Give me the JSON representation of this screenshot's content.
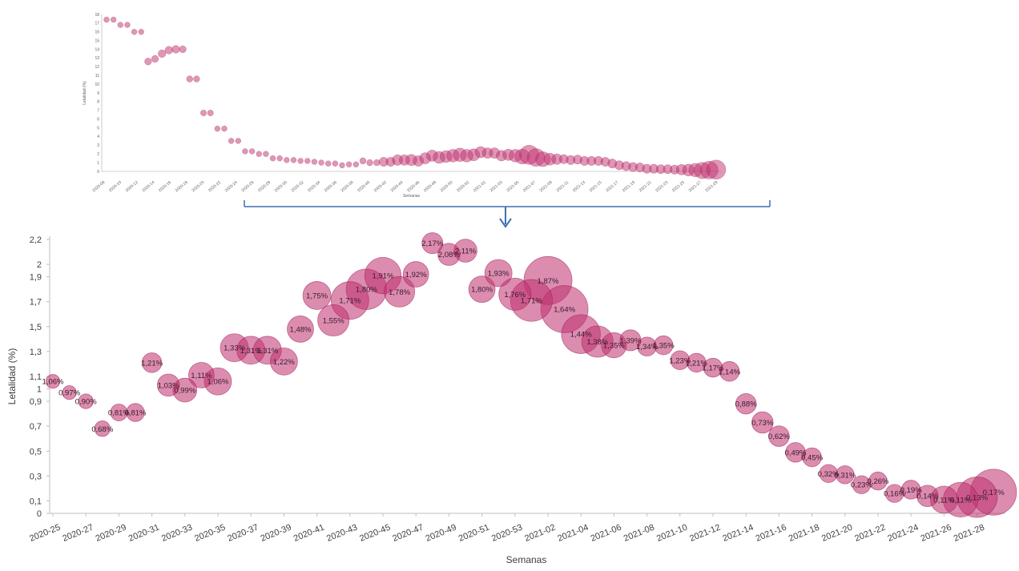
{
  "chart_data": [
    {
      "type": "scatter",
      "subtype": "bubble",
      "title": "",
      "xlabel": "Semanas",
      "ylabel": "Letalidad (%)",
      "ylim": [
        0,
        18
      ],
      "yticks": [
        "0",
        "1",
        "2",
        "3",
        "4",
        "5",
        "6",
        "7",
        "8",
        "9",
        "10",
        "11",
        "12",
        "13",
        "14",
        "15",
        "16",
        "17",
        "18"
      ],
      "x_ticks": [
        "2020-08",
        "2020-10",
        "2020-12",
        "2020-14",
        "2020-16",
        "2020-18",
        "2020-20",
        "2020-22",
        "2020-24",
        "2020-26",
        "2020-28",
        "2020-30",
        "2020-32",
        "2020-34",
        "2020-36",
        "2020-38",
        "2020-40",
        "2020-42",
        "2020-44",
        "2020-46",
        "2020-48",
        "2020-50",
        "2020-52",
        "2021-01",
        "2021-03",
        "2021-05",
        "2021-07",
        "2021-09",
        "2021-11",
        "2021-13",
        "2021-15",
        "2021-17",
        "2021-19",
        "2021-21",
        "2021-23",
        "2021-25",
        "2021-27",
        "2021-29"
      ],
      "grid": false,
      "points": [
        {
          "x": 0,
          "y": 17.4,
          "s": 0.05
        },
        {
          "x": 1,
          "y": 17.4,
          "s": 0.05
        },
        {
          "x": 2,
          "y": 16.8,
          "s": 0.05
        },
        {
          "x": 3,
          "y": 16.8,
          "s": 0.05
        },
        {
          "x": 4,
          "y": 16.0,
          "s": 0.05
        },
        {
          "x": 5,
          "y": 16.0,
          "s": 0.05
        },
        {
          "x": 6,
          "y": 12.6,
          "s": 0.15
        },
        {
          "x": 7,
          "y": 12.9,
          "s": 0.15
        },
        {
          "x": 8,
          "y": 13.5,
          "s": 0.2
        },
        {
          "x": 9,
          "y": 13.9,
          "s": 0.2
        },
        {
          "x": 10,
          "y": 14.0,
          "s": 0.2
        },
        {
          "x": 11,
          "y": 14.0,
          "s": 0.15
        },
        {
          "x": 12,
          "y": 10.6,
          "s": 0.1
        },
        {
          "x": 13,
          "y": 10.6,
          "s": 0.1
        },
        {
          "x": 14,
          "y": 6.7,
          "s": 0.08
        },
        {
          "x": 15,
          "y": 6.7,
          "s": 0.08
        },
        {
          "x": 16,
          "y": 4.9,
          "s": 0.05
        },
        {
          "x": 17,
          "y": 4.9,
          "s": 0.05
        },
        {
          "x": 18,
          "y": 3.5,
          "s": 0.05
        },
        {
          "x": 19,
          "y": 3.5,
          "s": 0.05
        },
        {
          "x": 20,
          "y": 2.3,
          "s": 0.05
        },
        {
          "x": 21,
          "y": 2.3,
          "s": 0.05
        },
        {
          "x": 22,
          "y": 2.0,
          "s": 0.05
        },
        {
          "x": 23,
          "y": 2.0,
          "s": 0.05
        },
        {
          "x": 24,
          "y": 1.5,
          "s": 0.05
        },
        {
          "x": 25,
          "y": 1.5,
          "s": 0.05
        },
        {
          "x": 26,
          "y": 1.3,
          "s": 0.05
        },
        {
          "x": 27,
          "y": 1.3,
          "s": 0.05
        },
        {
          "x": 28,
          "y": 1.2,
          "s": 0.05
        },
        {
          "x": 29,
          "y": 1.2,
          "s": 0.05
        },
        {
          "x": 30,
          "y": 1.1,
          "s": 0.05
        },
        {
          "x": 31,
          "y": 1.0,
          "s": 0.05
        },
        {
          "x": 32,
          "y": 0.9,
          "s": 0.05
        },
        {
          "x": 33,
          "y": 0.9,
          "s": 0.05
        },
        {
          "x": 34,
          "y": 0.7,
          "s": 0.05
        },
        {
          "x": 35,
          "y": 0.8,
          "s": 0.05
        },
        {
          "x": 36,
          "y": 0.8,
          "s": 0.05
        },
        {
          "x": 37,
          "y": 1.2,
          "s": 0.1
        },
        {
          "x": 38,
          "y": 1.0,
          "s": 0.1
        },
        {
          "x": 39,
          "y": 1.0,
          "s": 0.1
        },
        {
          "x": 40,
          "y": 1.1,
          "s": 0.3
        },
        {
          "x": 41,
          "y": 1.1,
          "s": 0.3
        },
        {
          "x": 42,
          "y": 1.3,
          "s": 0.4
        },
        {
          "x": 43,
          "y": 1.3,
          "s": 0.4
        },
        {
          "x": 44,
          "y": 1.3,
          "s": 0.45
        },
        {
          "x": 45,
          "y": 1.2,
          "s": 0.4
        },
        {
          "x": 46,
          "y": 1.5,
          "s": 0.45
        },
        {
          "x": 47,
          "y": 1.8,
          "s": 0.45
        },
        {
          "x": 48,
          "y": 1.6,
          "s": 0.5
        },
        {
          "x": 49,
          "y": 1.7,
          "s": 0.5
        },
        {
          "x": 50,
          "y": 1.8,
          "s": 0.55
        },
        {
          "x": 51,
          "y": 1.9,
          "s": 0.6
        },
        {
          "x": 52,
          "y": 1.8,
          "s": 0.55
        },
        {
          "x": 53,
          "y": 1.9,
          "s": 0.5
        },
        {
          "x": 54,
          "y": 2.2,
          "s": 0.45
        },
        {
          "x": 55,
          "y": 2.1,
          "s": 0.4
        },
        {
          "x": 56,
          "y": 2.1,
          "s": 0.4
        },
        {
          "x": 57,
          "y": 1.8,
          "s": 0.4
        },
        {
          "x": 58,
          "y": 1.9,
          "s": 0.45
        },
        {
          "x": 59,
          "y": 1.8,
          "s": 0.55
        },
        {
          "x": 60,
          "y": 1.7,
          "s": 0.7
        },
        {
          "x": 61,
          "y": 1.9,
          "s": 1.0
        },
        {
          "x": 62,
          "y": 1.6,
          "s": 0.9
        },
        {
          "x": 63,
          "y": 1.4,
          "s": 0.7
        },
        {
          "x": 64,
          "y": 1.4,
          "s": 0.5
        },
        {
          "x": 65,
          "y": 1.4,
          "s": 0.4
        },
        {
          "x": 66,
          "y": 1.4,
          "s": 0.3
        },
        {
          "x": 67,
          "y": 1.3,
          "s": 0.3
        },
        {
          "x": 68,
          "y": 1.35,
          "s": 0.3
        },
        {
          "x": 69,
          "y": 1.2,
          "s": 0.3
        },
        {
          "x": 70,
          "y": 1.2,
          "s": 0.3
        },
        {
          "x": 71,
          "y": 1.2,
          "s": 0.3
        },
        {
          "x": 72,
          "y": 1.1,
          "s": 0.3
        },
        {
          "x": 73,
          "y": 0.9,
          "s": 0.3
        },
        {
          "x": 74,
          "y": 0.7,
          "s": 0.3
        },
        {
          "x": 75,
          "y": 0.6,
          "s": 0.3
        },
        {
          "x": 76,
          "y": 0.5,
          "s": 0.3
        },
        {
          "x": 77,
          "y": 0.45,
          "s": 0.3
        },
        {
          "x": 78,
          "y": 0.3,
          "s": 0.3
        },
        {
          "x": 79,
          "y": 0.3,
          "s": 0.3
        },
        {
          "x": 80,
          "y": 0.25,
          "s": 0.3
        },
        {
          "x": 81,
          "y": 0.25,
          "s": 0.3
        },
        {
          "x": 82,
          "y": 0.2,
          "s": 0.3
        },
        {
          "x": 83,
          "y": 0.2,
          "s": 0.4
        },
        {
          "x": 84,
          "y": 0.15,
          "s": 0.5
        },
        {
          "x": 85,
          "y": 0.15,
          "s": 0.6
        },
        {
          "x": 86,
          "y": 0.1,
          "s": 0.8
        },
        {
          "x": 87,
          "y": 0.15,
          "s": 0.9
        },
        {
          "x": 88,
          "y": 0.2,
          "s": 1.0
        }
      ]
    },
    {
      "type": "scatter",
      "subtype": "bubble",
      "title": "",
      "xlabel": "Semanas",
      "ylabel": "Letalidad (%)",
      "ylim": [
        0,
        2.2
      ],
      "yticks": [
        "0",
        "0,1",
        "0,3",
        "0,5",
        "0,7",
        "0,9",
        "1",
        "1,1",
        "1,3",
        "1,5",
        "1,7",
        "1,9",
        "2",
        "2,2"
      ],
      "yticks_values": [
        0,
        0.1,
        0.3,
        0.5,
        0.7,
        0.9,
        1,
        1.1,
        1.3,
        1.5,
        1.7,
        1.9,
        2,
        2.2
      ],
      "x_ticks": [
        "2020-25",
        "2020-27",
        "2020-29",
        "2020-31",
        "2020-33",
        "2020-35",
        "2020-37",
        "2020-39",
        "2020-41",
        "2020-43",
        "2020-45",
        "2020-47",
        "2020-49",
        "2020-51",
        "2020-53",
        "2021-02",
        "2021-04",
        "2021-06",
        "2021-08",
        "2021-10",
        "2021-12",
        "2021-14",
        "2021-16",
        "2021-18",
        "2021-20",
        "2021-22",
        "2021-24",
        "2021-26",
        "2021-28"
      ],
      "grid": false,
      "points": [
        {
          "x": 0,
          "y": 1.06,
          "label": "1,06%",
          "s": 0.18
        },
        {
          "x": 1,
          "y": 0.97,
          "label": "0,97%",
          "s": 0.18
        },
        {
          "x": 2,
          "y": 0.9,
          "label": "0,90%",
          "s": 0.2
        },
        {
          "x": 3,
          "y": 0.68,
          "label": "0,68%",
          "s": 0.22
        },
        {
          "x": 4,
          "y": 0.81,
          "label": "0,81%",
          "s": 0.25
        },
        {
          "x": 5,
          "y": 0.81,
          "label": "0,81%",
          "s": 0.28
        },
        {
          "x": 6,
          "y": 1.21,
          "label": "1,21%",
          "s": 0.32
        },
        {
          "x": 7,
          "y": 1.03,
          "label": "1,03%",
          "s": 0.38
        },
        {
          "x": 8,
          "y": 0.99,
          "label": "0,99%",
          "s": 0.42
        },
        {
          "x": 9,
          "y": 1.11,
          "label": "1,11%",
          "s": 0.46
        },
        {
          "x": 10,
          "y": 1.06,
          "label": "1,06%",
          "s": 0.5
        },
        {
          "x": 11,
          "y": 1.33,
          "label": "1,33%",
          "s": 0.52
        },
        {
          "x": 12,
          "y": 1.31,
          "label": "1,31%",
          "s": 0.52
        },
        {
          "x": 13,
          "y": 1.31,
          "label": "1,31%",
          "s": 0.52
        },
        {
          "x": 14,
          "y": 1.22,
          "label": "1,22%",
          "s": 0.5
        },
        {
          "x": 15,
          "y": 1.48,
          "label": "1,48%",
          "s": 0.48
        },
        {
          "x": 16,
          "y": 1.75,
          "label": "1,75%",
          "s": 0.52
        },
        {
          "x": 17,
          "y": 1.55,
          "label": "1,55%",
          "s": 0.6
        },
        {
          "x": 18,
          "y": 1.71,
          "label": "1,71%",
          "s": 0.75
        },
        {
          "x": 19,
          "y": 1.8,
          "label": "1,80%",
          "s": 0.82
        },
        {
          "x": 20,
          "y": 1.91,
          "label": "1,91%",
          "s": 0.72
        },
        {
          "x": 21,
          "y": 1.78,
          "label": "1,78%",
          "s": 0.58
        },
        {
          "x": 22,
          "y": 1.92,
          "label": "1,92%",
          "s": 0.46
        },
        {
          "x": 23,
          "y": 2.17,
          "label": "2,17%",
          "s": 0.35
        },
        {
          "x": 24,
          "y": 2.08,
          "label": "2,08%",
          "s": 0.38
        },
        {
          "x": 25,
          "y": 2.11,
          "label": "2,11%",
          "s": 0.4
        },
        {
          "x": 26,
          "y": 1.8,
          "label": "1,80%",
          "s": 0.48
        },
        {
          "x": 27,
          "y": 1.93,
          "label": "1,93%",
          "s": 0.5
        },
        {
          "x": 28,
          "y": 1.76,
          "label": "1,76%",
          "s": 0.62
        },
        {
          "x": 29,
          "y": 1.71,
          "label": "1,71%",
          "s": 0.85
        },
        {
          "x": 30,
          "y": 1.87,
          "label": "1,87%",
          "s": 1.0
        },
        {
          "x": 31,
          "y": 1.64,
          "label": "1,64%",
          "s": 0.98
        },
        {
          "x": 32,
          "y": 1.44,
          "label": "1,44%",
          "s": 0.78
        },
        {
          "x": 33,
          "y": 1.38,
          "label": "1,38%",
          "s": 0.6
        },
        {
          "x": 34,
          "y": 1.35,
          "label": "1,35%",
          "s": 0.45
        },
        {
          "x": 35,
          "y": 1.39,
          "label": "1,39%",
          "s": 0.35
        },
        {
          "x": 36,
          "y": 1.34,
          "label": "1,34%",
          "s": 0.3
        },
        {
          "x": 37,
          "y": 1.35,
          "label": "1,35%",
          "s": 0.3
        },
        {
          "x": 38,
          "y": 1.23,
          "label": "1,23%",
          "s": 0.3
        },
        {
          "x": 39,
          "y": 1.21,
          "label": "1,21%",
          "s": 0.3
        },
        {
          "x": 40,
          "y": 1.17,
          "label": "1,17%",
          "s": 0.3
        },
        {
          "x": 41,
          "y": 1.14,
          "label": "1,14%",
          "s": 0.32
        },
        {
          "x": 42,
          "y": 0.88,
          "label": "0,88%",
          "s": 0.34
        },
        {
          "x": 43,
          "y": 0.73,
          "label": "0,73%",
          "s": 0.36
        },
        {
          "x": 44,
          "y": 0.62,
          "label": "0,62%",
          "s": 0.34
        },
        {
          "x": 45,
          "y": 0.49,
          "label": "0,49%",
          "s": 0.32
        },
        {
          "x": 46,
          "y": 0.45,
          "label": "0,45%",
          "s": 0.3
        },
        {
          "x": 47,
          "y": 0.32,
          "label": "0,32%",
          "s": 0.28
        },
        {
          "x": 48,
          "y": 0.31,
          "label": "0,31%",
          "s": 0.28
        },
        {
          "x": 49,
          "y": 0.23,
          "label": "0,23%",
          "s": 0.28
        },
        {
          "x": 50,
          "y": 0.26,
          "label": "0,26%",
          "s": 0.28
        },
        {
          "x": 51,
          "y": 0.16,
          "label": "0,16%",
          "s": 0.28
        },
        {
          "x": 52,
          "y": 0.19,
          "label": "0,19%",
          "s": 0.3
        },
        {
          "x": 53,
          "y": 0.14,
          "label": "0,14%",
          "s": 0.36
        },
        {
          "x": 54,
          "y": 0.11,
          "label": "0,11%",
          "s": 0.5
        },
        {
          "x": 55,
          "y": 0.11,
          "label": "0,11%",
          "s": 0.68
        },
        {
          "x": 56,
          "y": 0.13,
          "label": "0,13%",
          "s": 0.82
        },
        {
          "x": 57,
          "y": 0.17,
          "label": "0,17%",
          "s": 0.95
        }
      ]
    }
  ],
  "style": {
    "bubble_color": "#c0306e",
    "bubble_stroke": "#9e1f56",
    "connector_color": "#3d6fb6",
    "axis_color": "#bfbfbf"
  }
}
